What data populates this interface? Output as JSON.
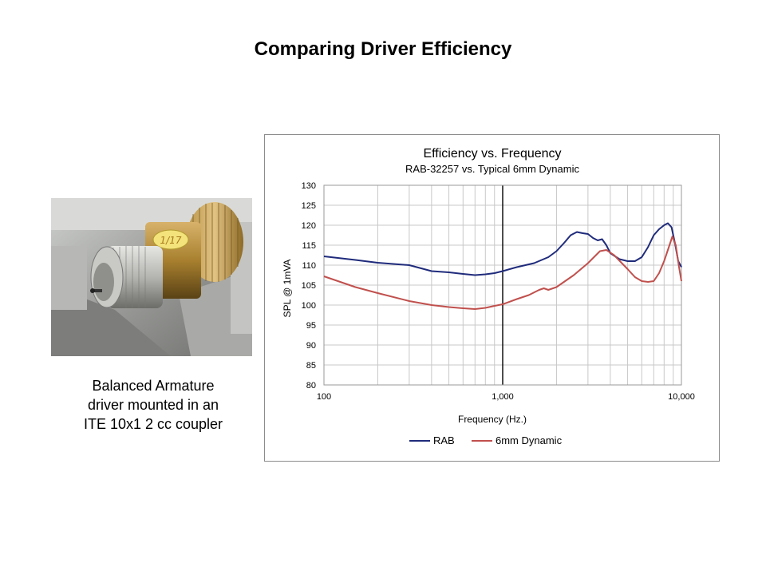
{
  "slide": {
    "title": "Comparing Driver Efficiency"
  },
  "photo": {
    "sticker_text": "1/17"
  },
  "caption": {
    "lines": [
      "Balanced Armature",
      "driver mounted  in an",
      "ITE 10x1 2 cc coupler"
    ]
  },
  "colors": {
    "rab": "#1f2b7b",
    "dynamic": "#c0504d",
    "grid": "#c8c8c8",
    "marker_1000": "#000000"
  },
  "chart_data": {
    "type": "line",
    "title": "Efficiency vs. Frequency",
    "subtitle": "RAB-32257 vs. Typical 6mm Dynamic",
    "xlabel": "Frequency (Hz.)",
    "ylabel": "SPL @ 1mVA",
    "xscale": "log",
    "xlim": [
      100,
      10000
    ],
    "ylim": [
      80,
      130
    ],
    "grid": true,
    "legend_position": "bottom",
    "x_tick_labels": [
      "100",
      "1,000",
      "10,000"
    ],
    "y_tick_labels": [
      "80",
      "85",
      "90",
      "95",
      "100",
      "105",
      "110",
      "115",
      "120",
      "125",
      "130"
    ],
    "series": [
      {
        "name": "RAB",
        "color": "#1f2b7b",
        "points": [
          [
            100,
            112.2
          ],
          [
            150,
            111.3
          ],
          [
            200,
            110.6
          ],
          [
            300,
            110.0
          ],
          [
            400,
            108.5
          ],
          [
            500,
            108.2
          ],
          [
            600,
            107.8
          ],
          [
            700,
            107.5
          ],
          [
            800,
            107.7
          ],
          [
            900,
            108.0
          ],
          [
            1000,
            108.5
          ],
          [
            1200,
            109.5
          ],
          [
            1500,
            110.5
          ],
          [
            1800,
            112.0
          ],
          [
            2000,
            113.5
          ],
          [
            2200,
            115.5
          ],
          [
            2400,
            117.5
          ],
          [
            2600,
            118.3
          ],
          [
            2800,
            118.0
          ],
          [
            3000,
            117.8
          ],
          [
            3200,
            116.8
          ],
          [
            3400,
            116.2
          ],
          [
            3600,
            116.5
          ],
          [
            3800,
            115.0
          ],
          [
            4000,
            113.0
          ],
          [
            4500,
            111.5
          ],
          [
            5000,
            111.0
          ],
          [
            5500,
            111.0
          ],
          [
            6000,
            112.0
          ],
          [
            6500,
            114.5
          ],
          [
            7000,
            117.5
          ],
          [
            7500,
            119.0
          ],
          [
            8000,
            120.0
          ],
          [
            8400,
            120.5
          ],
          [
            8800,
            119.5
          ],
          [
            9200,
            115.5
          ],
          [
            9600,
            111.0
          ],
          [
            10000,
            109.5
          ]
        ]
      },
      {
        "name": "6mm Dynamic",
        "color": "#c0504d",
        "points": [
          [
            100,
            107.2
          ],
          [
            150,
            104.5
          ],
          [
            200,
            103.0
          ],
          [
            300,
            101.0
          ],
          [
            400,
            100.0
          ],
          [
            500,
            99.5
          ],
          [
            600,
            99.2
          ],
          [
            700,
            99.0
          ],
          [
            800,
            99.3
          ],
          [
            900,
            99.8
          ],
          [
            1000,
            100.2
          ],
          [
            1200,
            101.5
          ],
          [
            1400,
            102.5
          ],
          [
            1600,
            103.8
          ],
          [
            1700,
            104.2
          ],
          [
            1800,
            103.8
          ],
          [
            2000,
            104.5
          ],
          [
            2500,
            107.5
          ],
          [
            3000,
            110.5
          ],
          [
            3500,
            113.5
          ],
          [
            3800,
            113.8
          ],
          [
            4200,
            112.5
          ],
          [
            5000,
            109.0
          ],
          [
            5500,
            107.0
          ],
          [
            6000,
            106.0
          ],
          [
            6500,
            105.8
          ],
          [
            7000,
            106.0
          ],
          [
            7500,
            108.0
          ],
          [
            8000,
            111.0
          ],
          [
            8500,
            114.5
          ],
          [
            8900,
            117.2
          ],
          [
            9300,
            115.0
          ],
          [
            9700,
            109.5
          ],
          [
            10000,
            106.0
          ]
        ]
      }
    ]
  }
}
